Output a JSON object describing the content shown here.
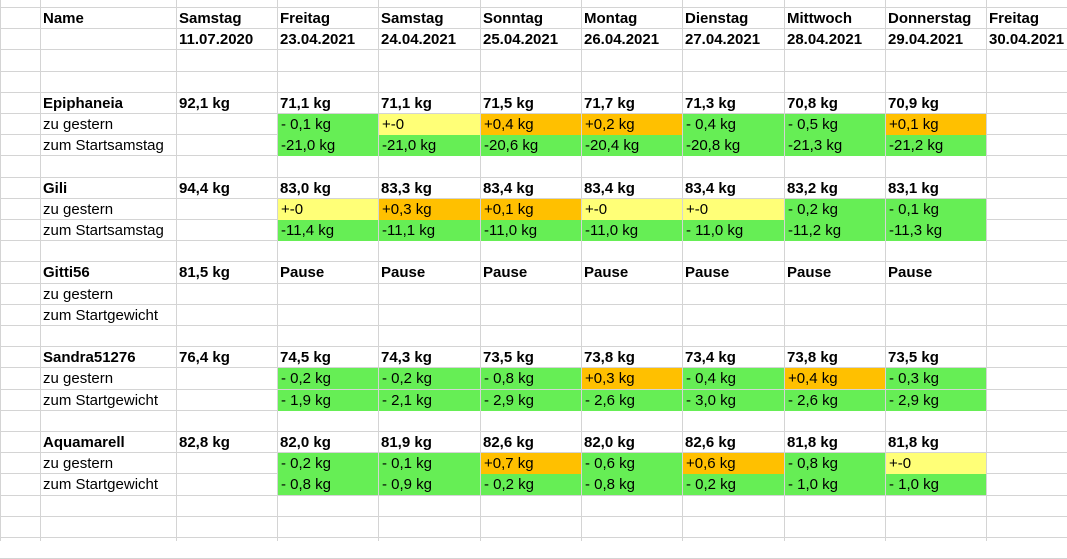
{
  "header": {
    "name_label": "Name",
    "days": [
      {
        "day": "Samstag",
        "date": "11.07.2020"
      },
      {
        "day": "Freitag",
        "date": "23.04.2021"
      },
      {
        "day": "Samstag",
        "date": "24.04.2021"
      },
      {
        "day": "Sonntag",
        "date": "25.04.2021"
      },
      {
        "day": "Montag",
        "date": "26.04.2021"
      },
      {
        "day": "Dienstag",
        "date": "27.04.2021"
      },
      {
        "day": "Mittwoch",
        "date": "28.04.2021"
      },
      {
        "day": "Donnerstag",
        "date": "29.04.2021"
      },
      {
        "day": "Freitag",
        "date": "30.04.2021"
      }
    ]
  },
  "colors": {
    "green": "#66ee55",
    "yellow": "#ffff77",
    "orange": "#ffc000",
    "grid": "#d4d4d4"
  },
  "groups": [
    {
      "name": "Epiphaneia",
      "rows": [
        {
          "label": "",
          "bold": true,
          "cells": [
            {
              "t": "92,1 kg"
            },
            {
              "t": "71,1 kg"
            },
            {
              "t": "71,1 kg"
            },
            {
              "t": "71,5 kg"
            },
            {
              "t": "71,7 kg"
            },
            {
              "t": "71,3 kg"
            },
            {
              "t": "70,8 kg"
            },
            {
              "t": "70,9 kg"
            }
          ]
        },
        {
          "label": "zu gestern",
          "cells": [
            {
              "t": ""
            },
            {
              "t": "- 0,1 kg",
              "c": "green"
            },
            {
              "t": "+-0",
              "c": "yellow"
            },
            {
              "t": "+0,4 kg",
              "c": "orange"
            },
            {
              "t": "+0,2 kg",
              "c": "orange"
            },
            {
              "t": "- 0,4 kg",
              "c": "green"
            },
            {
              "t": "- 0,5 kg",
              "c": "green"
            },
            {
              "t": "+0,1 kg",
              "c": "orange"
            }
          ]
        },
        {
          "label": "zum Startsamstag",
          "cells": [
            {
              "t": ""
            },
            {
              "t": "-21,0 kg",
              "c": "green"
            },
            {
              "t": "-21,0 kg",
              "c": "green"
            },
            {
              "t": "-20,6 kg",
              "c": "green"
            },
            {
              "t": "-20,4 kg",
              "c": "green"
            },
            {
              "t": "-20,8 kg",
              "c": "green"
            },
            {
              "t": "-21,3 kg",
              "c": "green"
            },
            {
              "t": "-21,2 kg",
              "c": "green"
            }
          ]
        }
      ]
    },
    {
      "name": "Gili",
      "rows": [
        {
          "label": "",
          "bold": true,
          "cells": [
            {
              "t": "94,4 kg"
            },
            {
              "t": "83,0 kg"
            },
            {
              "t": "83,3 kg"
            },
            {
              "t": "83,4 kg"
            },
            {
              "t": "83,4 kg"
            },
            {
              "t": "83,4 kg"
            },
            {
              "t": "83,2 kg"
            },
            {
              "t": "83,1 kg"
            }
          ]
        },
        {
          "label": "zu gestern",
          "cells": [
            {
              "t": ""
            },
            {
              "t": "+-0",
              "c": "yellow"
            },
            {
              "t": "+0,3 kg",
              "c": "orange"
            },
            {
              "t": "+0,1 kg",
              "c": "orange"
            },
            {
              "t": "+-0",
              "c": "yellow"
            },
            {
              "t": "+-0",
              "c": "yellow"
            },
            {
              "t": "- 0,2 kg",
              "c": "green"
            },
            {
              "t": "- 0,1 kg",
              "c": "green"
            }
          ]
        },
        {
          "label": "zum Startsamstag",
          "cells": [
            {
              "t": ""
            },
            {
              "t": "-11,4 kg",
              "c": "green"
            },
            {
              "t": "-11,1 kg",
              "c": "green"
            },
            {
              "t": "-11,0 kg",
              "c": "green"
            },
            {
              "t": "-11,0 kg",
              "c": "green"
            },
            {
              "t": "- 11,0 kg",
              "c": "green"
            },
            {
              "t": "-11,2 kg",
              "c": "green"
            },
            {
              "t": "-11,3 kg",
              "c": "green"
            }
          ]
        }
      ]
    },
    {
      "name": "Gitti56",
      "rows": [
        {
          "label": "",
          "bold": true,
          "cells": [
            {
              "t": "81,5 kg"
            },
            {
              "t": "Pause"
            },
            {
              "t": "Pause"
            },
            {
              "t": "Pause"
            },
            {
              "t": "Pause"
            },
            {
              "t": "Pause"
            },
            {
              "t": "Pause"
            },
            {
              "t": "Pause"
            }
          ]
        },
        {
          "label": "zu gestern",
          "cells": []
        },
        {
          "label": "zum Startgewicht",
          "cells": []
        }
      ]
    },
    {
      "name": "Sandra51276",
      "rows": [
        {
          "label": "",
          "bold": true,
          "cells": [
            {
              "t": "76,4 kg"
            },
            {
              "t": "74,5 kg"
            },
            {
              "t": "74,3 kg"
            },
            {
              "t": "73,5 kg"
            },
            {
              "t": "73,8 kg"
            },
            {
              "t": "73,4 kg"
            },
            {
              "t": "73,8 kg"
            },
            {
              "t": "73,5 kg"
            }
          ]
        },
        {
          "label": "zu gestern",
          "cells": [
            {
              "t": ""
            },
            {
              "t": "- 0,2 kg",
              "c": "green"
            },
            {
              "t": "- 0,2 kg",
              "c": "green"
            },
            {
              "t": "- 0,8 kg",
              "c": "green"
            },
            {
              "t": "+0,3 kg",
              "c": "orange"
            },
            {
              "t": "- 0,4 kg",
              "c": "green"
            },
            {
              "t": "+0,4 kg",
              "c": "orange"
            },
            {
              "t": "- 0,3 kg",
              "c": "green"
            }
          ]
        },
        {
          "label": "zum Startgewicht",
          "cells": [
            {
              "t": ""
            },
            {
              "t": "- 1,9 kg",
              "c": "green"
            },
            {
              "t": "- 2,1 kg",
              "c": "green"
            },
            {
              "t": "- 2,9 kg",
              "c": "green"
            },
            {
              "t": "- 2,6 kg",
              "c": "green"
            },
            {
              "t": "- 3,0 kg",
              "c": "green"
            },
            {
              "t": "- 2,6 kg",
              "c": "green"
            },
            {
              "t": "- 2,9 kg",
              "c": "green"
            }
          ]
        }
      ]
    },
    {
      "name": "Aquamarell",
      "rows": [
        {
          "label": "",
          "bold": true,
          "cells": [
            {
              "t": "82,8 kg"
            },
            {
              "t": "82,0 kg"
            },
            {
              "t": "81,9 kg"
            },
            {
              "t": "82,6 kg"
            },
            {
              "t": "82,0 kg"
            },
            {
              "t": "82,6 kg"
            },
            {
              "t": "81,8 kg"
            },
            {
              "t": "81,8 kg"
            }
          ]
        },
        {
          "label": "zu gestern",
          "cells": [
            {
              "t": ""
            },
            {
              "t": "- 0,2 kg",
              "c": "green"
            },
            {
              "t": "- 0,1 kg",
              "c": "green"
            },
            {
              "t": "+0,7 kg",
              "c": "orange"
            },
            {
              "t": "- 0,6 kg",
              "c": "green"
            },
            {
              "t": "+0,6 kg",
              "c": "orange"
            },
            {
              "t": "- 0,8 kg",
              "c": "green"
            },
            {
              "t": "+-0",
              "c": "yellow"
            }
          ]
        },
        {
          "label": "zum Startgewicht",
          "cells": [
            {
              "t": ""
            },
            {
              "t": "- 0,8 kg",
              "c": "green"
            },
            {
              "t": "- 0,9 kg",
              "c": "green"
            },
            {
              "t": "- 0,2 kg",
              "c": "green"
            },
            {
              "t": "- 0,8 kg",
              "c": "green"
            },
            {
              "t": "- 0,2 kg",
              "c": "green"
            },
            {
              "t": "- 1,0 kg",
              "c": "green"
            },
            {
              "t": "- 1,0 kg",
              "c": "green"
            }
          ]
        }
      ]
    }
  ]
}
